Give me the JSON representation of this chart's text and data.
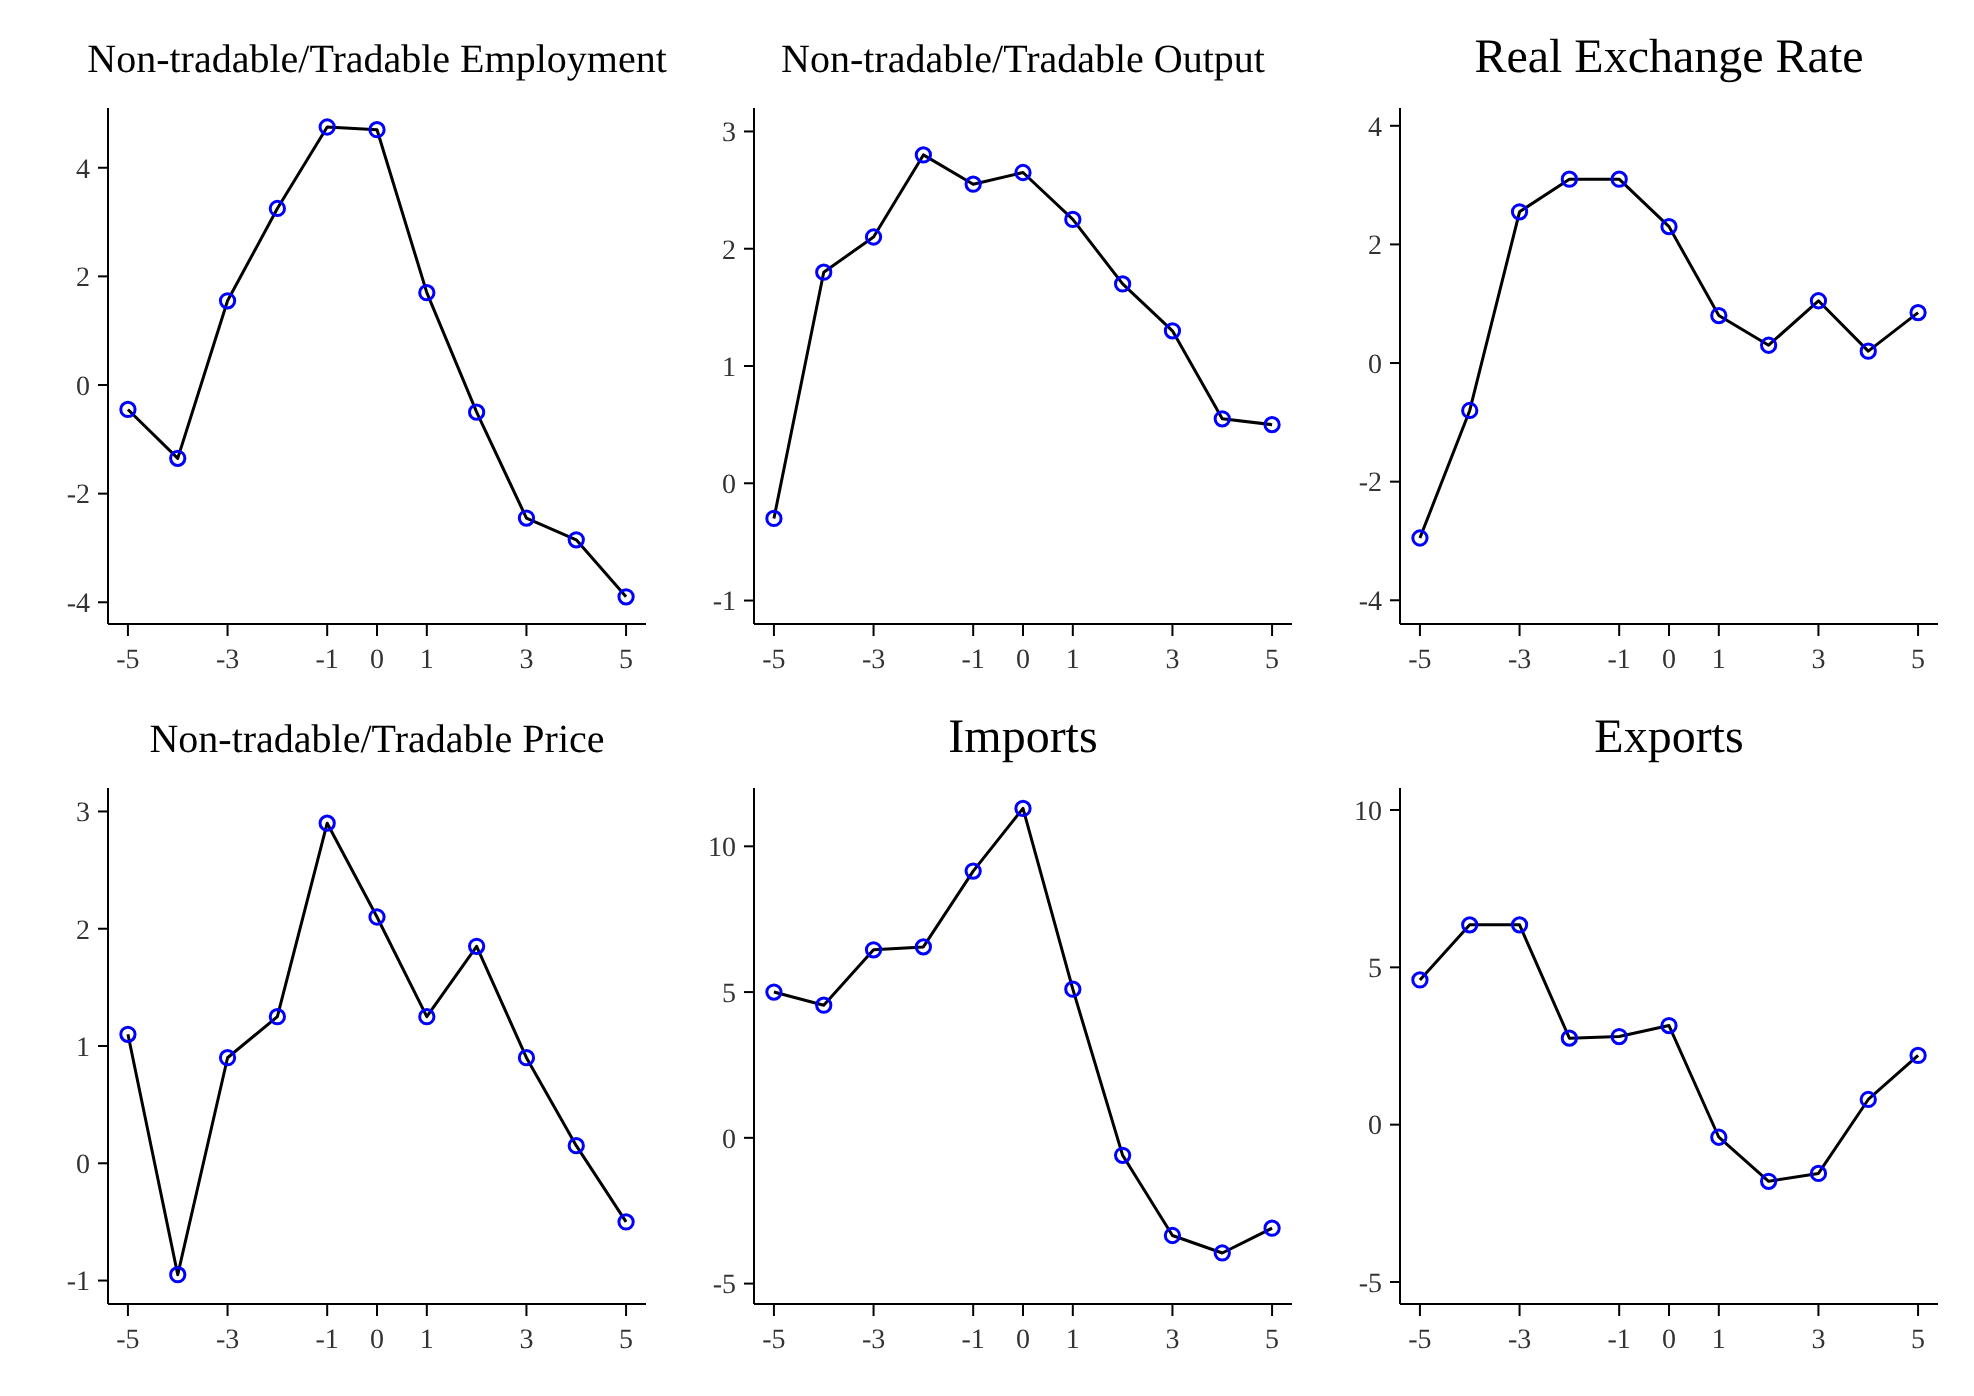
{
  "chart_data": [
    {
      "type": "line",
      "title": "Non-tradable/Tradable Employment",
      "x": [
        -5,
        -4,
        -3,
        -2,
        -1,
        0,
        1,
        2,
        3,
        4,
        5
      ],
      "series": [
        {
          "color": "#000000",
          "values": [
            -0.45,
            -1.35,
            1.55,
            3.25,
            4.75,
            4.7,
            1.7,
            -0.5,
            -2.45,
            -2.85,
            -3.9
          ]
        }
      ],
      "xlim": [
        -5.4,
        5.4
      ],
      "xticks": [
        -5,
        -3,
        -1,
        0,
        1,
        3,
        5
      ],
      "ylim": [
        -4.4,
        5.1
      ],
      "yticks": [
        -4,
        -2,
        0,
        2,
        4
      ],
      "marker": "circle"
    },
    {
      "type": "line",
      "title": "Non-tradable/Tradable Output",
      "x": [
        -5,
        -4,
        -3,
        -2,
        -1,
        0,
        1,
        2,
        3,
        4,
        5
      ],
      "series": [
        {
          "color": "#000000",
          "values": [
            -0.3,
            1.8,
            2.1,
            2.8,
            2.55,
            2.65,
            2.25,
            1.7,
            1.3,
            0.55,
            0.5
          ]
        }
      ],
      "xlim": [
        -5.4,
        5.4
      ],
      "xticks": [
        -5,
        -3,
        -1,
        0,
        1,
        3,
        5
      ],
      "ylim": [
        -1.2,
        3.2
      ],
      "yticks": [
        -1,
        0,
        1,
        2,
        3
      ],
      "marker": "circle"
    },
    {
      "type": "line",
      "title": "Real Exchange Rate",
      "x": [
        -5,
        -4,
        -3,
        -2,
        -1,
        0,
        1,
        2,
        3,
        4,
        5
      ],
      "series": [
        {
          "color": "#000000",
          "values": [
            -2.95,
            -0.8,
            2.55,
            3.1,
            3.1,
            2.3,
            0.8,
            0.3,
            1.05,
            0.2,
            0.85
          ]
        }
      ],
      "xlim": [
        -5.4,
        5.4
      ],
      "xticks": [
        -5,
        -3,
        -1,
        0,
        1,
        3,
        5
      ],
      "ylim": [
        -4.4,
        4.3
      ],
      "yticks": [
        -4,
        -2,
        0,
        2,
        4
      ],
      "marker": "circle"
    },
    {
      "type": "line",
      "title": "Non-tradable/Tradable Price",
      "x": [
        -5,
        -4,
        -3,
        -2,
        -1,
        0,
        1,
        2,
        3,
        4,
        5
      ],
      "series": [
        {
          "color": "#000000",
          "values": [
            1.1,
            -0.95,
            0.9,
            1.25,
            2.9,
            2.1,
            1.25,
            1.85,
            0.9,
            0.15,
            -0.5
          ]
        }
      ],
      "xlim": [
        -5.4,
        5.4
      ],
      "xticks": [
        -5,
        -3,
        -1,
        0,
        1,
        3,
        5
      ],
      "ylim": [
        -1.2,
        3.2
      ],
      "yticks": [
        -1,
        0,
        1,
        2,
        3
      ],
      "marker": "circle"
    },
    {
      "type": "line",
      "title": "Imports",
      "x": [
        -5,
        -4,
        -3,
        -2,
        -1,
        0,
        1,
        2,
        3,
        4,
        5
      ],
      "series": [
        {
          "color": "#000000",
          "values": [
            5,
            4.55,
            6.45,
            6.55,
            9.15,
            11.3,
            5.1,
            -0.6,
            -3.35,
            -3.95,
            -3.1
          ]
        }
      ],
      "xlim": [
        -5.4,
        5.4
      ],
      "xticks": [
        -5,
        -3,
        -1,
        0,
        1,
        3,
        5
      ],
      "ylim": [
        -5.7,
        12
      ],
      "yticks": [
        -5,
        0,
        5,
        10
      ],
      "marker": "circle"
    },
    {
      "type": "line",
      "title": "Exports",
      "x": [
        -5,
        -4,
        -3,
        -2,
        -1,
        0,
        1,
        2,
        3,
        4,
        5
      ],
      "series": [
        {
          "color": "#000000",
          "values": [
            4.6,
            6.35,
            6.35,
            2.75,
            2.8,
            3.15,
            -0.4,
            -1.8,
            -1.55,
            0.8,
            2.2
          ]
        }
      ],
      "xlim": [
        -5.4,
        5.4
      ],
      "xticks": [
        -5,
        -3,
        -1,
        0,
        1,
        3,
        5
      ],
      "ylim": [
        -5.7,
        10.7
      ],
      "yticks": [
        -5,
        0,
        5,
        10
      ],
      "marker": "circle"
    }
  ]
}
